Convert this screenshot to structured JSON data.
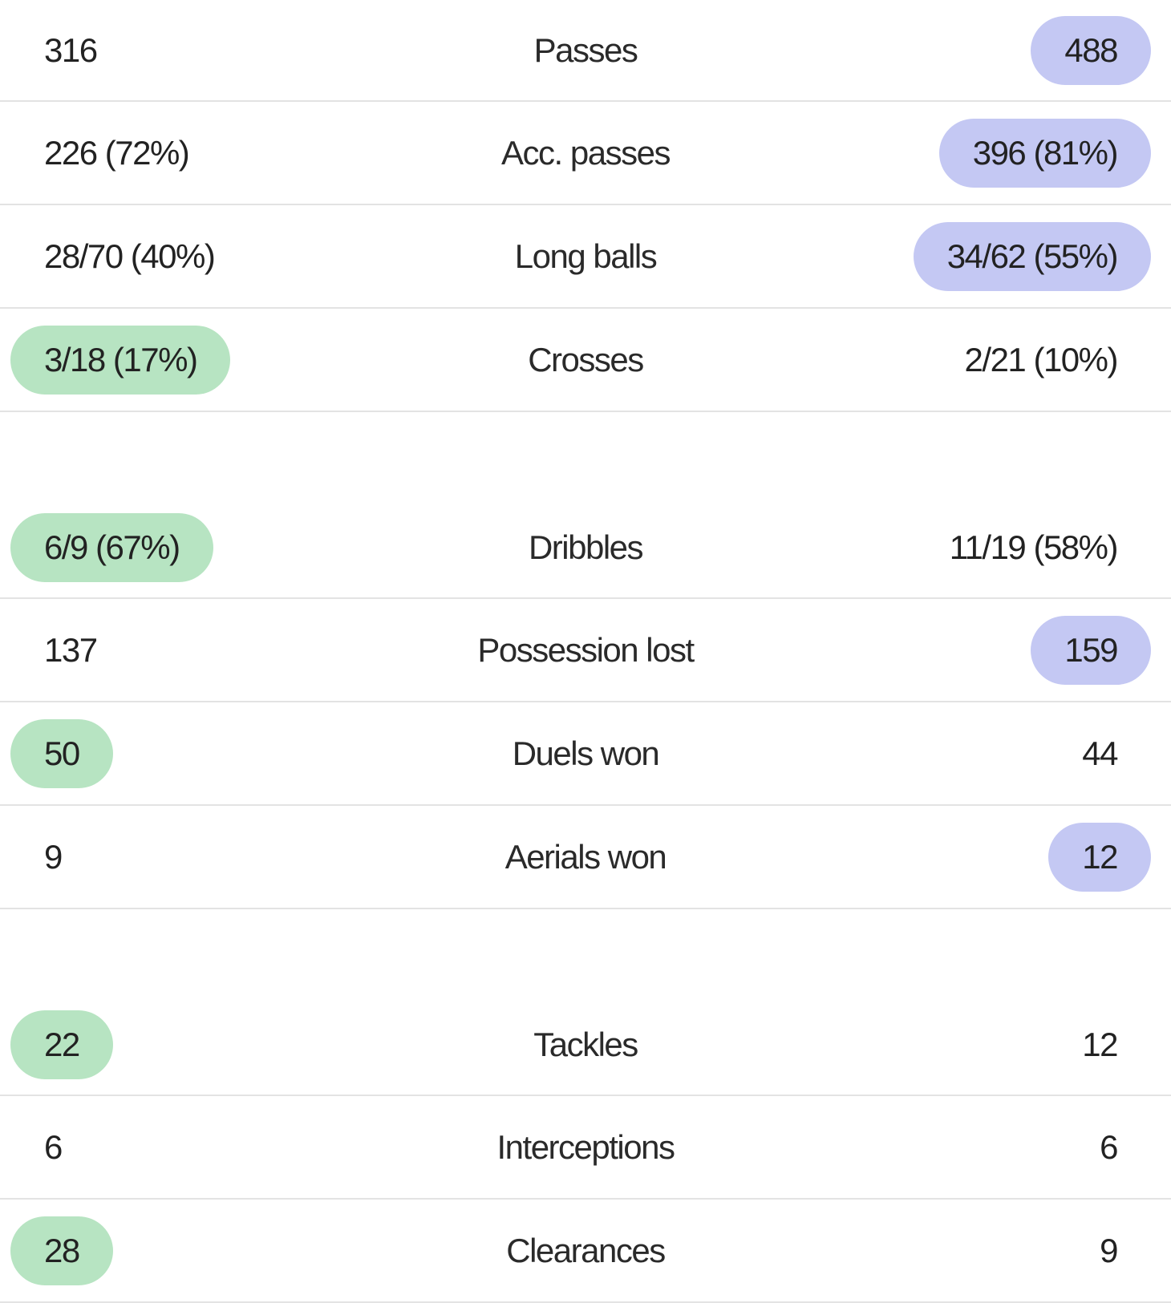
{
  "colors": {
    "home_highlight": "#b7e4c2",
    "away_highlight": "#c4c8f3",
    "divider": "#e3e3e3"
  },
  "groups": [
    {
      "rows": [
        {
          "label": "Passes",
          "home": "316",
          "away": "488",
          "winner": "away"
        },
        {
          "label": "Acc. passes",
          "home": "226 (72%)",
          "away": "396 (81%)",
          "winner": "away"
        },
        {
          "label": "Long balls",
          "home": "28/70 (40%)",
          "away": "34/62 (55%)",
          "winner": "away"
        },
        {
          "label": "Crosses",
          "home": "3/18 (17%)",
          "away": "2/21 (10%)",
          "winner": "home"
        }
      ]
    },
    {
      "rows": [
        {
          "label": "Dribbles",
          "home": "6/9 (67%)",
          "away": "11/19 (58%)",
          "winner": "home"
        },
        {
          "label": "Possession lost",
          "home": "137",
          "away": "159",
          "winner": "away"
        },
        {
          "label": "Duels won",
          "home": "50",
          "away": "44",
          "winner": "home"
        },
        {
          "label": "Aerials won",
          "home": "9",
          "away": "12",
          "winner": "away"
        }
      ]
    },
    {
      "rows": [
        {
          "label": "Tackles",
          "home": "22",
          "away": "12",
          "winner": "home"
        },
        {
          "label": "Interceptions",
          "home": "6",
          "away": "6",
          "winner": "none"
        },
        {
          "label": "Clearances",
          "home": "28",
          "away": "9",
          "winner": "home"
        }
      ]
    }
  ]
}
